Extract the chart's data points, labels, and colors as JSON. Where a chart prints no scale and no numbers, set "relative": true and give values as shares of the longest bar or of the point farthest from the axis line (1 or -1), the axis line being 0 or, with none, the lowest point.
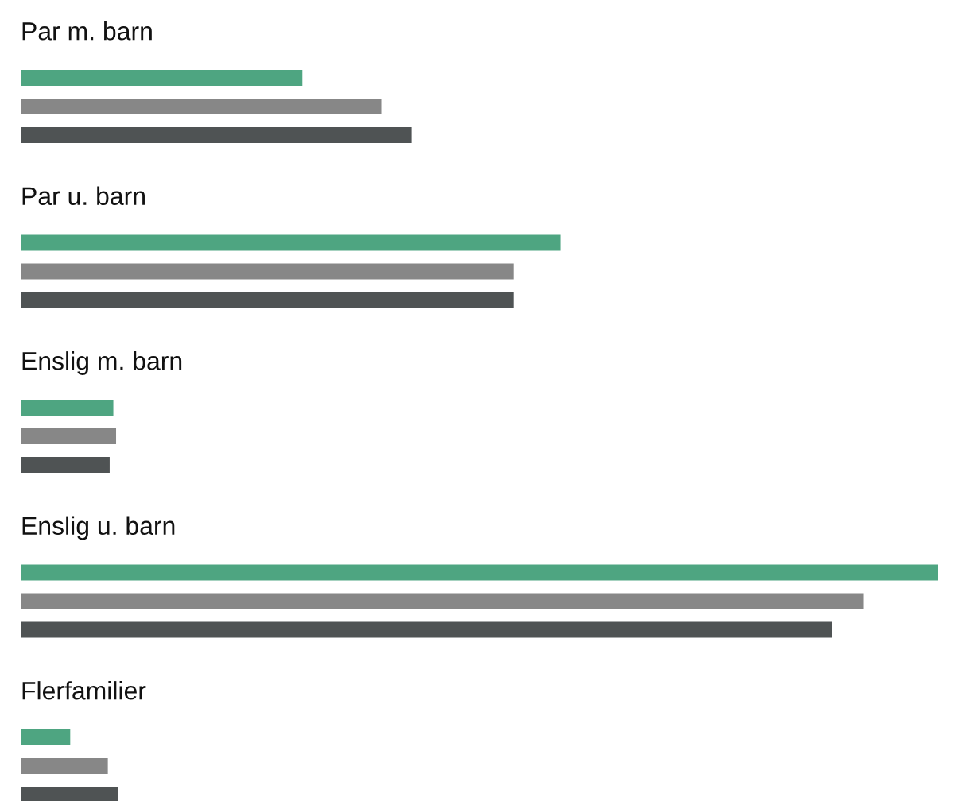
{
  "chart_data": {
    "type": "bar",
    "orientation": "horizontal",
    "relative": true,
    "categories": [
      "Par m. barn",
      "Par u. barn",
      "Enslig m. barn",
      "Enslig u. barn",
      "Flerfamilier"
    ],
    "series": [
      {
        "color": "#4ea581",
        "values": [
          0.307,
          0.588,
          0.101,
          1,
          0.054
        ]
      },
      {
        "color": "#878787",
        "values": [
          0.393,
          0.537,
          0.104,
          0.919,
          0.095
        ]
      },
      {
        "color": "#4f5354",
        "values": [
          0.426,
          0.537,
          0.097,
          0.884,
          0.106
        ]
      }
    ]
  }
}
